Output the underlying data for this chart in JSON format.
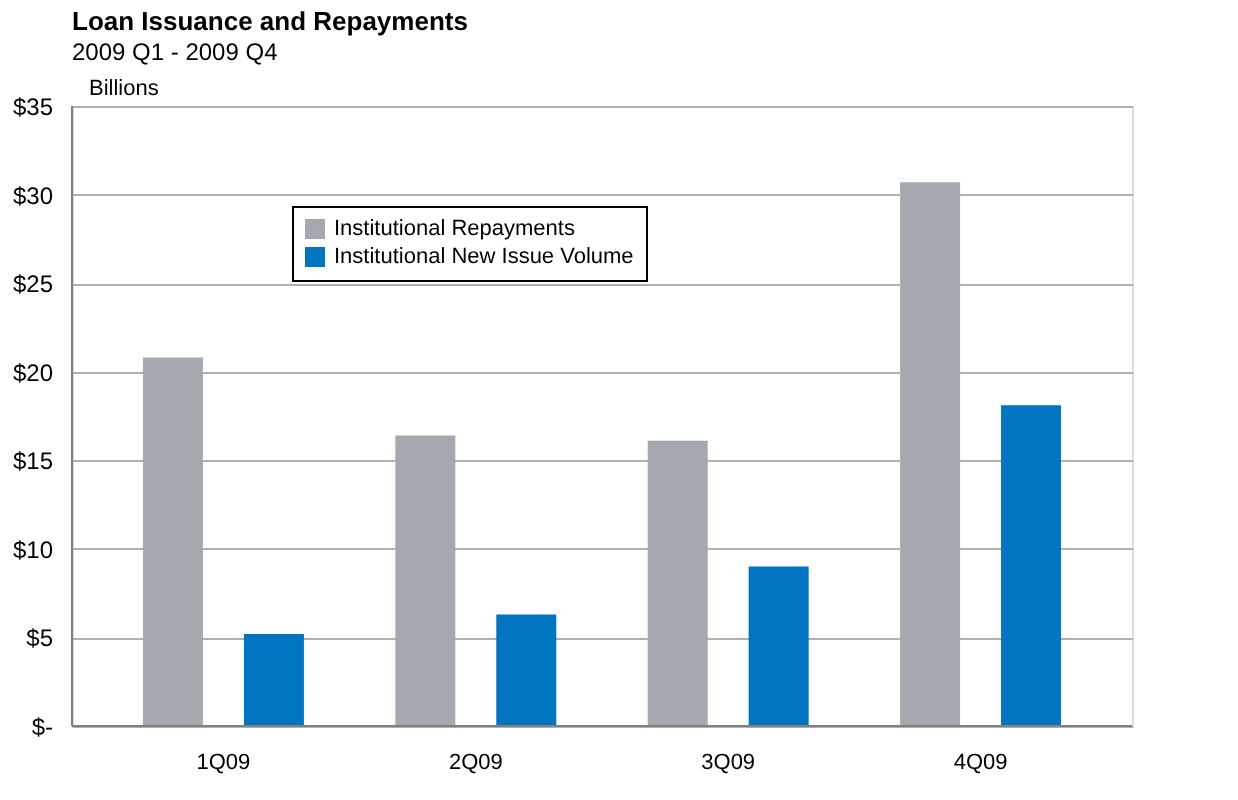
{
  "chart_data": {
    "type": "bar",
    "title": "Loan Issuance and Repayments",
    "subtitle": "2009 Q1 - 2009 Q4",
    "ylabel": "Billions",
    "categories": [
      "1Q09",
      "2Q09",
      "3Q09",
      "4Q09"
    ],
    "series": [
      {
        "name": "Institutional Repayments",
        "color": "#a3a9ae",
        "values": [
          20.8,
          16.4,
          16.1,
          30.7
        ]
      },
      {
        "name": "Institutional New Issue Volume",
        "color": "#0075c2",
        "values": [
          5.2,
          6.3,
          9.0,
          18.1
        ]
      }
    ],
    "ylim": [
      0,
      35
    ],
    "yticks": [
      {
        "value": 0,
        "label": "$-"
      },
      {
        "value": 5,
        "label": "$5"
      },
      {
        "value": 10,
        "label": "$10"
      },
      {
        "value": 15,
        "label": "$15"
      },
      {
        "value": 20,
        "label": "$20"
      },
      {
        "value": 25,
        "label": "$25"
      },
      {
        "value": 30,
        "label": "$30"
      },
      {
        "value": 35,
        "label": "$35"
      }
    ],
    "grid": "y",
    "legend": "top left"
  }
}
